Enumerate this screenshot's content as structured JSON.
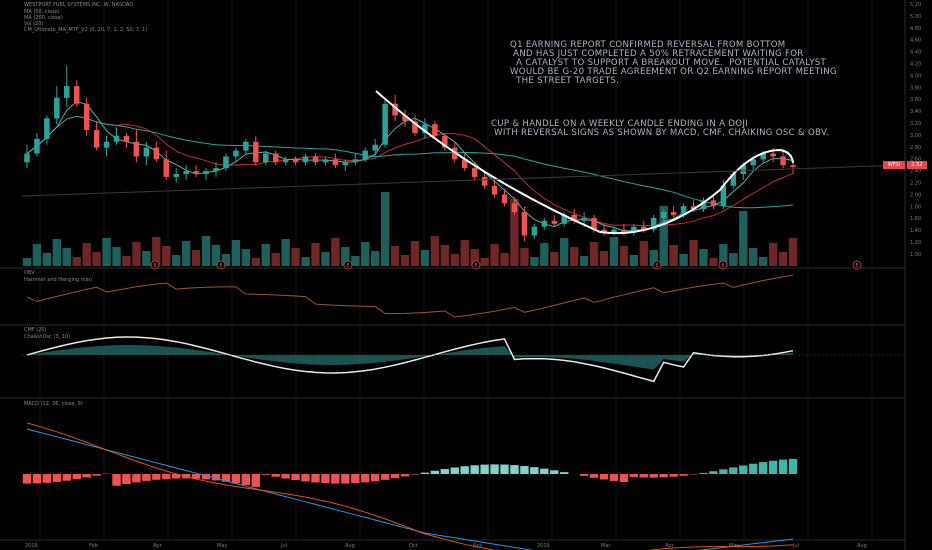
{
  "header": {
    "symbol_line": "WESTPORT FUEL SYSTEMS INC, W, NASDAQ",
    "ma1": "MA (50, close)",
    "ma2": "MA (200, close)",
    "vol": "Vol (20)",
    "study": "CM_Ultimate_MA_MTF_V2 (0, 20, 7, 1, 2, 50, 7, 1)"
  },
  "annotations": {
    "note1": "Q1 EARNING REPORT CONFIRMED REVERSAL FROM BOTTOM\n AND HAS JUST COMPLETED A 50% RETRACEMENT WAITING FOR\n  A CATALYST TO SUPPORT A BREAKOUT MOVE.  POTENTIAL CATALYST\nWOULD BE G-20 TRADE AGREEMENT OR Q2 EARNING REPORT MEETING\n  THE STREET TARGETS.",
    "note2": "CUP & HANDLE ON A WEEKLY CANDLE ENDING IN A DOJI\n WITH REVERSAL SIGNS AS SHOWN BY MACD, CMF, CHAIKING OSC & OBV."
  },
  "price_tags": {
    "symbol": "WFSI",
    "last": "2.52"
  },
  "panes": {
    "obv": "OBV",
    "hammer": "Hammer and Hanging man",
    "cmf": "CMF (20)",
    "chaikin": "ChaikinOsc (3, 10)",
    "macd": "MACD (12, 26, close, 9)"
  },
  "colors": {
    "up": "#26a69a",
    "down": "#ef5350",
    "ma50": "#c62828",
    "ma200": "#26a69a",
    "curve": "#ffffff",
    "obv": "#a0522d",
    "cmf": "#26a69a",
    "macd": "#2196f3",
    "signal": "#e65100"
  },
  "chart_data": {
    "type": "candlestick",
    "title": "WESTPORT FUEL SYSTEMS INC, W, NASDAQ",
    "x_labels": [
      "2018",
      "Feb",
      "Apr",
      "May",
      "Jul",
      "Aug",
      "Oct",
      "Nov",
      "2019",
      "Mar",
      "Apr",
      "May",
      "Jul",
      "Aug"
    ],
    "y_ticks": [
      "5.20",
      "5.00",
      "4.80",
      "4.60",
      "4.40",
      "4.20",
      "4.00",
      "3.80",
      "3.60",
      "3.40",
      "3.20",
      "3.00",
      "2.80",
      "2.60",
      "2.40",
      "2.20",
      "2.00",
      "1.80",
      "1.60",
      "1.40",
      "1.20",
      "1.00"
    ],
    "ylim": [
      1.0,
      5.2
    ],
    "candles": [
      {
        "o": 2.6,
        "h": 2.9,
        "l": 2.5,
        "c": 2.75
      },
      {
        "o": 2.75,
        "h": 3.1,
        "l": 2.7,
        "c": 3.0
      },
      {
        "o": 3.0,
        "h": 3.4,
        "l": 2.9,
        "c": 3.35
      },
      {
        "o": 3.35,
        "h": 3.9,
        "l": 3.25,
        "c": 3.7
      },
      {
        "o": 3.7,
        "h": 4.25,
        "l": 3.55,
        "c": 3.9
      },
      {
        "o": 3.9,
        "h": 4.0,
        "l": 3.55,
        "c": 3.6
      },
      {
        "o": 3.6,
        "h": 3.7,
        "l": 3.05,
        "c": 3.15
      },
      {
        "o": 3.15,
        "h": 3.3,
        "l": 2.8,
        "c": 2.85
      },
      {
        "o": 2.85,
        "h": 3.05,
        "l": 2.7,
        "c": 2.95
      },
      {
        "o": 2.95,
        "h": 3.2,
        "l": 2.9,
        "c": 3.05
      },
      {
        "o": 3.05,
        "h": 3.1,
        "l": 2.85,
        "c": 2.95
      },
      {
        "o": 2.95,
        "h": 3.15,
        "l": 2.6,
        "c": 2.7
      },
      {
        "o": 2.7,
        "h": 2.95,
        "l": 2.55,
        "c": 2.85
      },
      {
        "o": 2.85,
        "h": 2.95,
        "l": 2.6,
        "c": 2.65
      },
      {
        "o": 2.65,
        "h": 2.8,
        "l": 2.3,
        "c": 2.35
      },
      {
        "o": 2.35,
        "h": 2.5,
        "l": 2.25,
        "c": 2.4
      },
      {
        "o": 2.4,
        "h": 2.55,
        "l": 2.3,
        "c": 2.45
      },
      {
        "o": 2.45,
        "h": 2.55,
        "l": 2.35,
        "c": 2.4
      },
      {
        "o": 2.4,
        "h": 2.5,
        "l": 2.3,
        "c": 2.45
      },
      {
        "o": 2.45,
        "h": 2.6,
        "l": 2.35,
        "c": 2.5
      },
      {
        "o": 2.5,
        "h": 2.75,
        "l": 2.45,
        "c": 2.7
      },
      {
        "o": 2.7,
        "h": 2.85,
        "l": 2.6,
        "c": 2.8
      },
      {
        "o": 2.8,
        "h": 3.0,
        "l": 2.75,
        "c": 2.95
      },
      {
        "o": 2.95,
        "h": 3.05,
        "l": 2.55,
        "c": 2.6
      },
      {
        "o": 2.6,
        "h": 2.8,
        "l": 2.55,
        "c": 2.75
      },
      {
        "o": 2.75,
        "h": 2.8,
        "l": 2.55,
        "c": 2.6
      },
      {
        "o": 2.6,
        "h": 2.7,
        "l": 2.55,
        "c": 2.65
      },
      {
        "o": 2.65,
        "h": 2.7,
        "l": 2.55,
        "c": 2.6
      },
      {
        "o": 2.6,
        "h": 2.75,
        "l": 2.55,
        "c": 2.7
      },
      {
        "o": 2.7,
        "h": 2.75,
        "l": 2.55,
        "c": 2.6
      },
      {
        "o": 2.6,
        "h": 2.7,
        "l": 2.55,
        "c": 2.65
      },
      {
        "o": 2.65,
        "h": 2.75,
        "l": 2.5,
        "c": 2.55
      },
      {
        "o": 2.55,
        "h": 2.65,
        "l": 2.45,
        "c": 2.6
      },
      {
        "o": 2.6,
        "h": 2.75,
        "l": 2.55,
        "c": 2.65
      },
      {
        "o": 2.65,
        "h": 2.85,
        "l": 2.6,
        "c": 2.8
      },
      {
        "o": 2.8,
        "h": 3.0,
        "l": 2.7,
        "c": 2.9
      },
      {
        "o": 2.9,
        "h": 3.7,
        "l": 2.85,
        "c": 3.6
      },
      {
        "o": 3.6,
        "h": 3.75,
        "l": 3.3,
        "c": 3.4
      },
      {
        "o": 3.4,
        "h": 3.5,
        "l": 3.2,
        "c": 3.3
      },
      {
        "o": 3.3,
        "h": 3.4,
        "l": 3.05,
        "c": 3.1
      },
      {
        "o": 3.1,
        "h": 3.35,
        "l": 3.0,
        "c": 3.25
      },
      {
        "o": 3.25,
        "h": 3.3,
        "l": 3.0,
        "c": 3.05
      },
      {
        "o": 3.05,
        "h": 3.1,
        "l": 2.8,
        "c": 2.85
      },
      {
        "o": 2.85,
        "h": 2.95,
        "l": 2.6,
        "c": 2.65
      },
      {
        "o": 2.65,
        "h": 2.75,
        "l": 2.45,
        "c": 2.5
      },
      {
        "o": 2.5,
        "h": 2.6,
        "l": 2.3,
        "c": 2.35
      },
      {
        "o": 2.35,
        "h": 2.45,
        "l": 2.15,
        "c": 2.2
      },
      {
        "o": 2.2,
        "h": 2.3,
        "l": 2.0,
        "c": 2.05
      },
      {
        "o": 2.05,
        "h": 2.15,
        "l": 1.85,
        "c": 1.9
      },
      {
        "o": 1.9,
        "h": 2.0,
        "l": 1.7,
        "c": 1.75
      },
      {
        "o": 1.75,
        "h": 1.85,
        "l": 1.25,
        "c": 1.35
      },
      {
        "o": 1.35,
        "h": 1.55,
        "l": 1.3,
        "c": 1.5
      },
      {
        "o": 1.5,
        "h": 1.65,
        "l": 1.45,
        "c": 1.6
      },
      {
        "o": 1.6,
        "h": 1.7,
        "l": 1.5,
        "c": 1.55
      },
      {
        "o": 1.55,
        "h": 1.75,
        "l": 1.5,
        "c": 1.7
      },
      {
        "o": 1.7,
        "h": 1.8,
        "l": 1.55,
        "c": 1.6
      },
      {
        "o": 1.6,
        "h": 1.75,
        "l": 1.5,
        "c": 1.65
      },
      {
        "o": 1.65,
        "h": 1.7,
        "l": 1.4,
        "c": 1.45
      },
      {
        "o": 1.45,
        "h": 1.55,
        "l": 1.35,
        "c": 1.4
      },
      {
        "o": 1.4,
        "h": 1.5,
        "l": 1.35,
        "c": 1.45
      },
      {
        "o": 1.45,
        "h": 1.55,
        "l": 1.35,
        "c": 1.4
      },
      {
        "o": 1.4,
        "h": 1.55,
        "l": 1.35,
        "c": 1.5
      },
      {
        "o": 1.5,
        "h": 1.6,
        "l": 1.4,
        "c": 1.45
      },
      {
        "o": 1.45,
        "h": 1.7,
        "l": 1.4,
        "c": 1.65
      },
      {
        "o": 1.65,
        "h": 1.8,
        "l": 1.6,
        "c": 1.75
      },
      {
        "o": 1.75,
        "h": 1.85,
        "l": 1.65,
        "c": 1.7
      },
      {
        "o": 1.7,
        "h": 1.9,
        "l": 1.65,
        "c": 1.85
      },
      {
        "o": 1.85,
        "h": 1.95,
        "l": 1.75,
        "c": 1.8
      },
      {
        "o": 1.8,
        "h": 2.0,
        "l": 1.75,
        "c": 1.95
      },
      {
        "o": 1.95,
        "h": 2.05,
        "l": 1.8,
        "c": 1.85
      },
      {
        "o": 1.85,
        "h": 2.3,
        "l": 1.8,
        "c": 2.2
      },
      {
        "o": 2.2,
        "h": 2.45,
        "l": 2.15,
        "c": 2.4
      },
      {
        "o": 2.4,
        "h": 2.6,
        "l": 2.3,
        "c": 2.55
      },
      {
        "o": 2.55,
        "h": 2.7,
        "l": 2.45,
        "c": 2.65
      },
      {
        "o": 2.65,
        "h": 2.8,
        "l": 2.6,
        "c": 2.75
      },
      {
        "o": 2.75,
        "h": 2.85,
        "l": 2.6,
        "c": 2.7
      },
      {
        "o": 2.7,
        "h": 2.78,
        "l": 2.5,
        "c": 2.55
      },
      {
        "o": 2.55,
        "h": 2.65,
        "l": 2.4,
        "c": 2.52
      }
    ],
    "volume_scale": 1
  }
}
